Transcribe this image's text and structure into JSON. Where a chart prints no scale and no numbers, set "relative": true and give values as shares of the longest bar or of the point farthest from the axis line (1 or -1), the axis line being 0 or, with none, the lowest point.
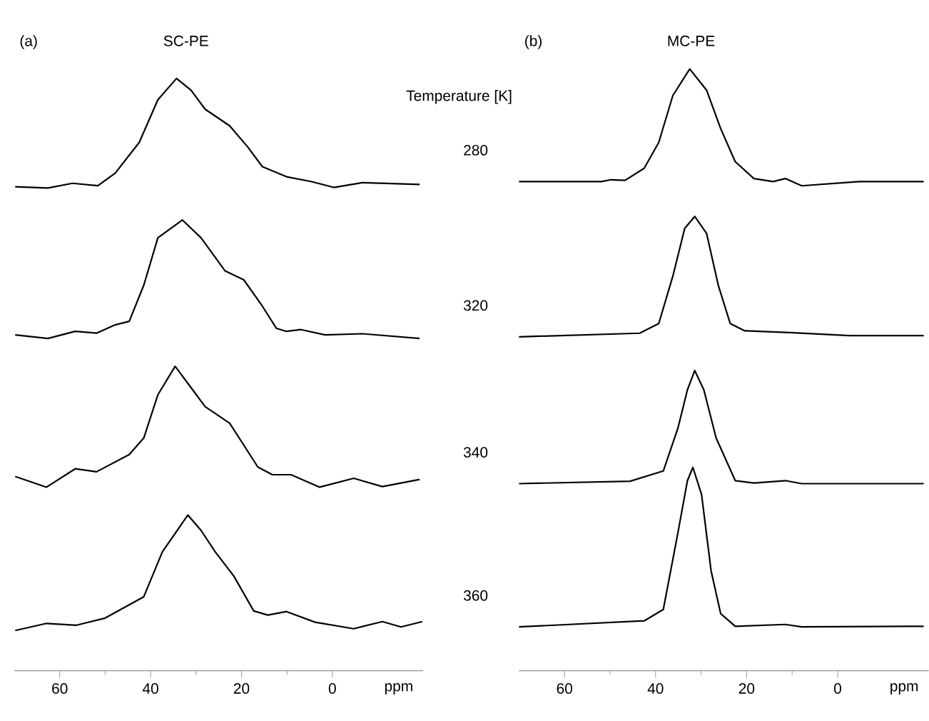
{
  "chart_data": [
    {
      "type": "line",
      "title": "SC-PE",
      "annotations": [
        "(a)"
      ],
      "xlabel": "ppm",
      "relative": true,
      "xlim": [
        70,
        -20
      ],
      "xticks": [
        60,
        40,
        20,
        0
      ],
      "series": [
        {
          "color": "#000000",
          "x": [
            69.8,
            62.6,
            57.2,
            51.6,
            47.8,
            42.5,
            38.4,
            34.3,
            31.1,
            28.0,
            22.6,
            18.6,
            15.4,
            10.1,
            4.7,
            -0.3,
            -6.6,
            -19.2
          ],
          "values": [
            0.817,
            0.815,
            0.823,
            0.819,
            0.84,
            0.892,
            0.964,
            1.0,
            0.98,
            0.948,
            0.92,
            0.884,
            0.851,
            0.834,
            0.826,
            0.816,
            0.824,
            0.821
          ]
        },
        {
          "color": "#000000",
          "x": [
            69.8,
            62.6,
            56.6,
            51.9,
            47.8,
            44.7,
            41.5,
            38.4,
            33.0,
            28.9,
            23.6,
            19.5,
            15.7,
            12.3,
            10.1,
            6.9,
            1.6,
            -6.6,
            -19.2
          ],
          "values": [
            0.567,
            0.561,
            0.573,
            0.57,
            0.584,
            0.59,
            0.651,
            0.731,
            0.761,
            0.731,
            0.675,
            0.66,
            0.619,
            0.578,
            0.573,
            0.576,
            0.567,
            0.569,
            0.561
          ]
        },
        {
          "color": "#000000",
          "x": [
            69.8,
            62.9,
            56.6,
            51.9,
            44.7,
            41.5,
            38.4,
            34.6,
            31.1,
            28.0,
            22.6,
            19.5,
            16.4,
            13.2,
            9.1,
            2.8,
            -4.7,
            -11.0,
            -19.2
          ],
          "values": [
            0.328,
            0.31,
            0.341,
            0.336,
            0.365,
            0.393,
            0.466,
            0.514,
            0.478,
            0.446,
            0.418,
            0.381,
            0.344,
            0.331,
            0.331,
            0.31,
            0.325,
            0.311,
            0.323
          ]
        },
        {
          "color": "#000000",
          "x": [
            69.8,
            62.9,
            56.3,
            50.0,
            41.5,
            37.4,
            31.8,
            28.9,
            25.8,
            21.7,
            17.3,
            14.2,
            10.1,
            3.8,
            -4.7,
            -11.0,
            -15.1,
            -19.8
          ],
          "values": [
            0.068,
            0.08,
            0.077,
            0.089,
            0.125,
            0.201,
            0.263,
            0.237,
            0.201,
            0.16,
            0.101,
            0.094,
            0.1,
            0.082,
            0.071,
            0.083,
            0.074,
            0.083
          ]
        }
      ]
    },
    {
      "type": "line",
      "title": "MC-PE",
      "annotations": [
        "(b)"
      ],
      "xlabel": "ppm",
      "legend_title": "Temperature [K]",
      "relative": true,
      "xlim": [
        70,
        -20
      ],
      "xticks": [
        60,
        40,
        20,
        0
      ],
      "series": [
        {
          "name": "280",
          "color": "#000000",
          "x": [
            70,
            51.9,
            49.8,
            46.7,
            42.5,
            39.3,
            36.2,
            32.5,
            28.8,
            25.7,
            22.5,
            18.4,
            14.2,
            11.5,
            7.9,
            -4.7,
            -18.9
          ],
          "values": [
            0.813,
            0.813,
            0.816,
            0.815,
            0.835,
            0.878,
            0.956,
            1.0,
            0.965,
            0.901,
            0.846,
            0.818,
            0.813,
            0.818,
            0.806,
            0.813,
            0.813
          ]
        },
        {
          "name": "320",
          "color": "#000000",
          "x": [
            70,
            43.5,
            39.3,
            36.2,
            33.6,
            31.4,
            28.8,
            26.2,
            23.6,
            20.4,
            10.5,
            -2.6,
            -18.9
          ],
          "values": [
            0.555,
            0.561,
            0.577,
            0.656,
            0.735,
            0.755,
            0.727,
            0.64,
            0.577,
            0.565,
            0.562,
            0.557,
            0.557
          ]
        },
        {
          "name": "340",
          "color": "#000000",
          "x": [
            70,
            45.6,
            38.3,
            35.1,
            33.0,
            31.4,
            29.4,
            26.7,
            22.5,
            18.4,
            11.5,
            7.9,
            -18.9
          ],
          "values": [
            0.311,
            0.315,
            0.332,
            0.403,
            0.467,
            0.499,
            0.467,
            0.387,
            0.316,
            0.312,
            0.316,
            0.311,
            0.311
          ]
        },
        {
          "name": "360",
          "color": "#000000",
          "x": [
            70,
            42.5,
            38.3,
            35.1,
            33.0,
            31.8,
            29.9,
            27.8,
            25.7,
            22.5,
            11.5,
            7.9,
            -18.9
          ],
          "values": [
            0.073,
            0.083,
            0.102,
            0.229,
            0.316,
            0.338,
            0.293,
            0.166,
            0.095,
            0.074,
            0.077,
            0.073,
            0.074
          ]
        }
      ]
    }
  ]
}
